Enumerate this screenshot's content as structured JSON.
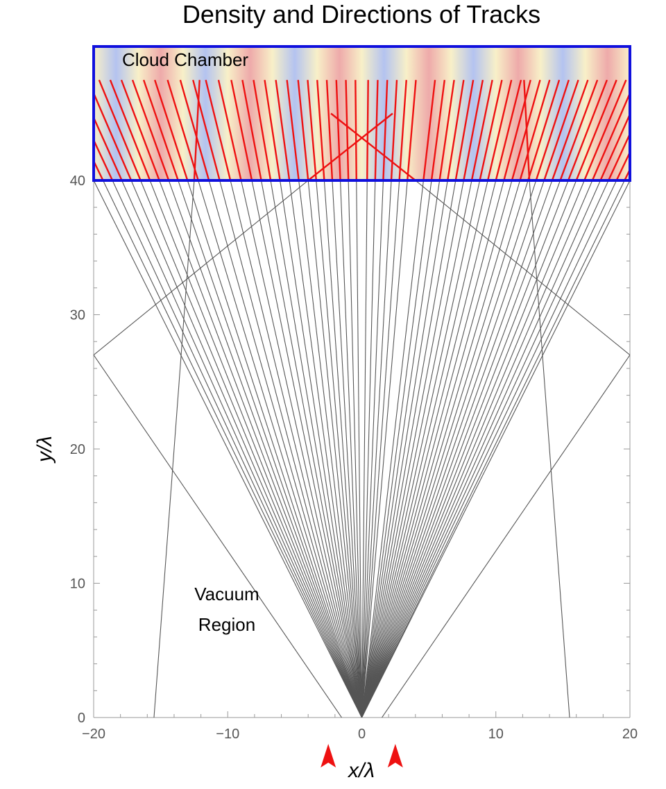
{
  "chart_data": {
    "type": "line",
    "title": "Density and Directions of Tracks",
    "xlabel": "x/λ",
    "ylabel": "y/λ",
    "xlim": [
      -20,
      20
    ],
    "ylim": [
      0,
      40
    ],
    "chamber_ylim": [
      40,
      50
    ],
    "x_ticks": [
      -20,
      -10,
      0,
      10,
      20
    ],
    "x_tick_labels": [
      "−20",
      "−10",
      "0",
      "10",
      "20"
    ],
    "y_ticks": [
      0,
      10,
      20,
      30,
      40
    ],
    "y_tick_labels": [
      "0",
      "10",
      "20",
      "30",
      "40"
    ],
    "grid": false,
    "annotations": {
      "chamber": "Cloud Chamber",
      "vacuum_line1": "Vacuum",
      "vacuum_line2": "Region"
    },
    "colors": {
      "track_vacuum": "#555555",
      "track_chamber": "#ee1111",
      "chamber_border": "#1010dd",
      "marker": "#ee1111",
      "fringe_blue": "#b4c3f0",
      "fringe_cream": "#f8f0c8",
      "fringe_pink": "#eeaaaa"
    },
    "source_markers_x": [
      -2.5,
      2.5
    ],
    "fan_origin": [
      0,
      0
    ],
    "fan_endpoints_x_at_40": [
      -20.0,
      -19.3,
      -18.6,
      -17.9,
      -17.2,
      -16.5,
      -15.8,
      -15.1,
      -14.4,
      -13.7,
      -13.0,
      -12.2,
      -11.4,
      -10.6,
      -9.8,
      -9.0,
      -8.2,
      -7.5,
      -6.8,
      -6.1,
      -5.4,
      -4.7,
      -4.0,
      -3.4,
      -2.8,
      -2.2,
      -1.6,
      -1.0,
      -0.4,
      0.4,
      1.0,
      1.6,
      2.2,
      2.8,
      3.4,
      4.6,
      5.2,
      5.8,
      6.4,
      7.0,
      7.6,
      8.2,
      8.8,
      9.4,
      10.0,
      10.6,
      11.2,
      11.8,
      12.4,
      13.0,
      13.6,
      14.2,
      14.8,
      15.4,
      16.0,
      16.6,
      17.2,
      17.8,
      18.4,
      19.0,
      19.6,
      20.0
    ],
    "other_tracks": [
      {
        "from": [
          -15.5,
          0
        ],
        "to": [
          -12.5,
          40
        ]
      },
      {
        "from": [
          15.5,
          0
        ],
        "to": [
          12.5,
          40
        ]
      },
      {
        "from": [
          -1.5,
          0
        ],
        "to": [
          -20,
          27
        ]
      },
      {
        "from": [
          1.5,
          0
        ],
        "to": [
          20,
          27
        ]
      },
      {
        "from": [
          -20,
          27
        ],
        "to": [
          -4,
          40
        ]
      },
      {
        "from": [
          20,
          27
        ],
        "to": [
          4,
          40
        ]
      }
    ]
  }
}
